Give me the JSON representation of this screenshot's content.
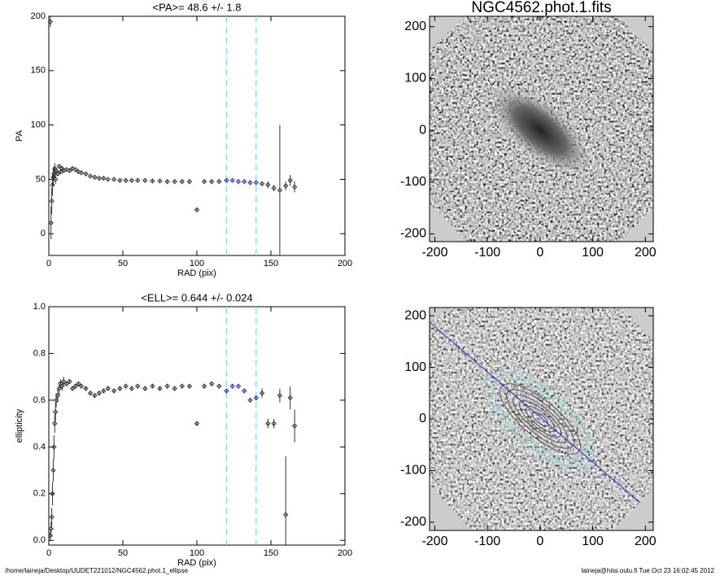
{
  "chart_data": [
    {
      "type": "errorbar",
      "title": "<PA>=  48.6 +/-   1.8",
      "xlabel": "RAD (pix)",
      "ylabel": "PA",
      "x": [
        1,
        1.5,
        2,
        2.5,
        3,
        3.5,
        4,
        4.5,
        5,
        6,
        7,
        8,
        9,
        10,
        12,
        14,
        16,
        18,
        20,
        22,
        25,
        28,
        31,
        34,
        37,
        40,
        44,
        48,
        52,
        56,
        60,
        65,
        70,
        75,
        80,
        85,
        90,
        95,
        100,
        105,
        110,
        115,
        120,
        124,
        128,
        132,
        136,
        140,
        144,
        148,
        152,
        156,
        160,
        163,
        166
      ],
      "values": [
        195,
        10,
        30,
        45,
        52,
        55,
        60,
        50,
        58,
        55,
        62,
        57,
        60,
        58,
        59,
        58,
        60,
        59,
        57,
        56,
        55,
        53,
        52,
        51,
        51,
        50,
        50,
        49,
        49,
        49,
        49,
        49,
        48.5,
        48.5,
        48,
        48,
        48,
        48,
        22,
        48,
        48,
        48,
        49,
        49,
        48,
        48,
        47,
        47,
        46,
        45,
        42,
        40,
        44,
        49,
        43
      ],
      "errors": [
        5,
        15,
        12,
        10,
        8,
        6,
        5,
        4,
        3,
        2,
        2,
        2,
        1.5,
        1,
        1,
        1,
        1,
        1,
        1,
        1,
        1,
        1,
        1,
        1,
        1,
        1,
        1,
        1,
        1,
        1,
        1,
        1,
        1,
        1,
        1,
        1,
        1,
        1,
        1,
        1,
        1,
        1,
        1,
        1,
        1,
        1,
        1,
        1,
        2,
        3,
        3,
        60,
        4,
        5,
        5
      ],
      "color": "#333333",
      "fit_color": "#3030c0",
      "vlines": [
        120,
        140
      ],
      "vline_color": "#80e0e0",
      "xlim": [
        0,
        200
      ],
      "ylim": [
        -20,
        200
      ],
      "xticks": [
        0,
        50,
        100,
        150,
        200
      ],
      "yticks": [
        0,
        50,
        100,
        150,
        200
      ]
    },
    {
      "type": "image",
      "title": "NGC4562.phot.1.fits",
      "xlim": [
        -210,
        215
      ],
      "ylim": [
        -215,
        220
      ],
      "xticks": [
        -200,
        -100,
        0,
        100,
        200
      ],
      "yticks": [
        -200,
        -100,
        0,
        100,
        200
      ]
    },
    {
      "type": "errorbar",
      "title": "<ELL>= 0.644 +/-  0.024",
      "xlabel": "RAD (pix)",
      "ylabel": "ellipticity",
      "x": [
        1,
        1.5,
        2,
        2.5,
        3,
        3.5,
        4,
        4.5,
        5,
        6,
        7,
        8,
        9,
        10,
        12,
        14,
        16,
        18,
        20,
        22,
        25,
        28,
        31,
        34,
        37,
        40,
        44,
        48,
        52,
        56,
        60,
        65,
        70,
        75,
        80,
        85,
        90,
        95,
        100,
        105,
        110,
        115,
        120,
        124,
        128,
        132,
        136,
        140,
        144,
        148,
        152,
        156,
        160,
        163,
        166
      ],
      "values": [
        0.02,
        0.05,
        0.1,
        0.2,
        0.3,
        0.4,
        0.5,
        0.55,
        0.6,
        0.62,
        0.65,
        0.67,
        0.66,
        0.68,
        0.67,
        0.68,
        0.65,
        0.66,
        0.67,
        0.66,
        0.65,
        0.63,
        0.62,
        0.63,
        0.64,
        0.65,
        0.64,
        0.65,
        0.66,
        0.65,
        0.66,
        0.65,
        0.66,
        0.65,
        0.66,
        0.65,
        0.66,
        0.66,
        0.5,
        0.66,
        0.67,
        0.66,
        0.64,
        0.66,
        0.66,
        0.64,
        0.6,
        0.61,
        0.63,
        0.5,
        0.5,
        0.62,
        0.11,
        0.61,
        0.49
      ],
      "errors": [
        0.02,
        0.03,
        0.04,
        0.05,
        0.05,
        0.05,
        0.04,
        0.04,
        0.03,
        0.03,
        0.03,
        0.02,
        0.02,
        0.02,
        0.01,
        0.01,
        0.01,
        0.01,
        0.01,
        0.01,
        0.01,
        0.01,
        0.01,
        0.01,
        0.01,
        0.01,
        0.01,
        0.01,
        0.01,
        0.01,
        0.01,
        0.01,
        0.01,
        0.01,
        0.01,
        0.01,
        0.01,
        0.01,
        0.01,
        0.01,
        0.01,
        0.01,
        0.01,
        0.01,
        0.01,
        0.01,
        0.01,
        0.01,
        0.02,
        0.02,
        0.02,
        0.03,
        0.25,
        0.05,
        0.07
      ],
      "color": "#333333",
      "fit_color": "#3030c0",
      "vlines": [
        120,
        140
      ],
      "vline_color": "#80e0e0",
      "xlim": [
        0,
        200
      ],
      "ylim": [
        -0.02,
        1.0
      ],
      "xticks": [
        0,
        50,
        100,
        150,
        200
      ],
      "yticks": [
        {
          "value": 0,
          "label": "0.0"
        },
        0.2,
        0.4,
        0.6,
        0.8,
        {
          "value": 1,
          "label": "1.0"
        }
      ]
    },
    {
      "type": "image",
      "xlim": [
        -210,
        215
      ],
      "ylim": [
        -216,
        216
      ],
      "xticks": [
        -200,
        -100,
        0,
        100,
        200
      ],
      "yticks": [
        -200,
        -100,
        0,
        100,
        200
      ]
    }
  ],
  "footer": {
    "path": "/home/laineja/Desktop/UUDET221012/NGC4562.phot.1_ellipse",
    "stamp": "laineja@hiisi.oulu.fi  Tue Oct 23 16:02:45 2012"
  }
}
